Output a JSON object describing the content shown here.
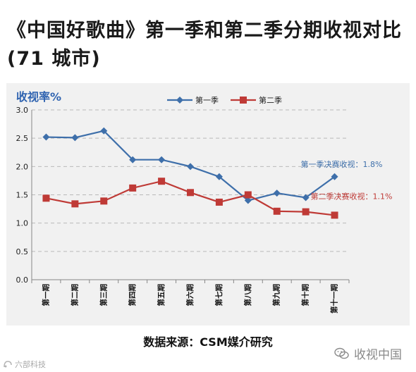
{
  "header": {
    "title": "《中国好歌曲》第一季和第二季分期收视对比(71 城市)"
  },
  "chart_data": {
    "type": "line",
    "ylabel": "收视率%",
    "ylim": [
      0,
      3.0
    ],
    "yticks": [
      "0.0",
      "0.5",
      "1.0",
      "1.5",
      "2.0",
      "2.5",
      "3.0"
    ],
    "categories": [
      "第一期",
      "第二期",
      "第三期",
      "第四期",
      "第五期",
      "第六期",
      "第七期",
      "第八期",
      "第九期",
      "第十期",
      "第十一期"
    ],
    "grid": true,
    "legend_position": "top",
    "series": [
      {
        "name": "第一季",
        "color": "#3e6faa",
        "marker": "diamond",
        "values": [
          2.52,
          2.51,
          2.63,
          2.12,
          2.12,
          2.0,
          1.82,
          1.4,
          1.53,
          1.45,
          1.82
        ]
      },
      {
        "name": "第二季",
        "color": "#bf3a36",
        "marker": "square",
        "values": [
          1.44,
          1.34,
          1.39,
          1.62,
          1.74,
          1.54,
          1.37,
          1.5,
          1.21,
          1.2,
          1.14
        ]
      }
    ],
    "annotations": [
      {
        "text": "第一季决赛收视：1.8%",
        "series": 0,
        "point": 10,
        "color": "#3e6faa"
      },
      {
        "text": "第二季决赛收视：1.1%",
        "series": 1,
        "point": 10,
        "color": "#bf3a36"
      }
    ]
  },
  "footer": {
    "source": "数据来源：CSM媒介研究",
    "watermark_right": "收视中国",
    "watermark_left": "六部科技"
  }
}
